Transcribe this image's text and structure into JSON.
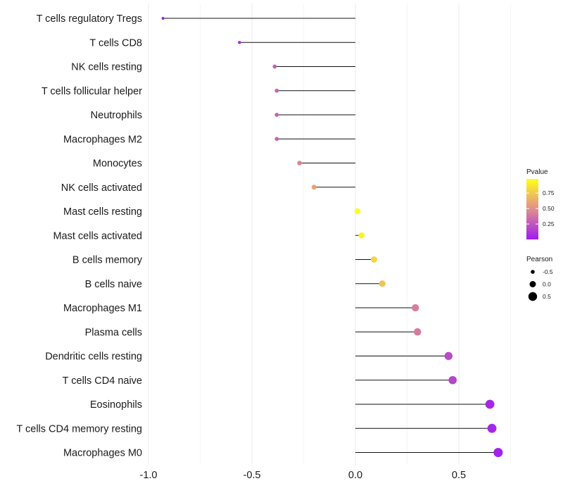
{
  "chart_data": {
    "type": "lollipop",
    "title": "",
    "xlabel": "",
    "ylabel": "",
    "xlim": [
      -1.0,
      0.75
    ],
    "xticks": [
      -1.0,
      -0.5,
      0.0,
      0.5
    ],
    "xtick_labels": [
      "-1.0",
      "-0.5",
      "0.0",
      "0.5"
    ],
    "grid": true,
    "colors": {
      "low": "#9e1cf0",
      "mid": "#e08e8e",
      "high": "#ffff19"
    },
    "points": [
      {
        "label": "T cells regulatory  Tregs",
        "pearson": -0.93,
        "pvalue": 0.01
      },
      {
        "label": "T cells CD8",
        "pearson": -0.56,
        "pvalue": 0.08
      },
      {
        "label": "NK cells resting",
        "pearson": -0.39,
        "pvalue": 0.28
      },
      {
        "label": "T cells follicular helper",
        "pearson": -0.38,
        "pvalue": 0.3
      },
      {
        "label": "Neutrophils",
        "pearson": -0.38,
        "pvalue": 0.3
      },
      {
        "label": "Macrophages M2",
        "pearson": -0.38,
        "pvalue": 0.3
      },
      {
        "label": "Monocytes",
        "pearson": -0.27,
        "pvalue": 0.45
      },
      {
        "label": "NK cells activated",
        "pearson": -0.2,
        "pvalue": 0.58
      },
      {
        "label": "Mast cells resting",
        "pearson": 0.01,
        "pvalue": 0.98
      },
      {
        "label": "Mast cells activated",
        "pearson": 0.03,
        "pvalue": 0.93
      },
      {
        "label": "B cells memory",
        "pearson": 0.09,
        "pvalue": 0.8
      },
      {
        "label": "B cells naive",
        "pearson": 0.13,
        "pvalue": 0.72
      },
      {
        "label": "Macrophages M1",
        "pearson": 0.29,
        "pvalue": 0.42
      },
      {
        "label": "Plasma cells",
        "pearson": 0.3,
        "pvalue": 0.41
      },
      {
        "label": "Dendritic cells resting",
        "pearson": 0.45,
        "pvalue": 0.2
      },
      {
        "label": "T cells CD4 naive",
        "pearson": 0.47,
        "pvalue": 0.18
      },
      {
        "label": "Eosinophils",
        "pearson": 0.65,
        "pvalue": 0.05
      },
      {
        "label": "T cells CD4 memory resting",
        "pearson": 0.66,
        "pvalue": 0.05
      },
      {
        "label": "Macrophages M0",
        "pearson": 0.69,
        "pvalue": 0.03
      }
    ],
    "legend": {
      "placement": "right",
      "color_title": "Pvalue",
      "color_ticks": [
        0.25,
        0.5,
        0.75
      ],
      "color_tick_labels": [
        "0.25",
        "0.50",
        "0.75"
      ],
      "color_range": [
        0.0,
        0.98
      ],
      "size_title": "Pearson",
      "size_values": [
        -0.5,
        0.0,
        0.5
      ],
      "size_labels": [
        "-0.5",
        "0.0",
        "0.5"
      ]
    }
  }
}
